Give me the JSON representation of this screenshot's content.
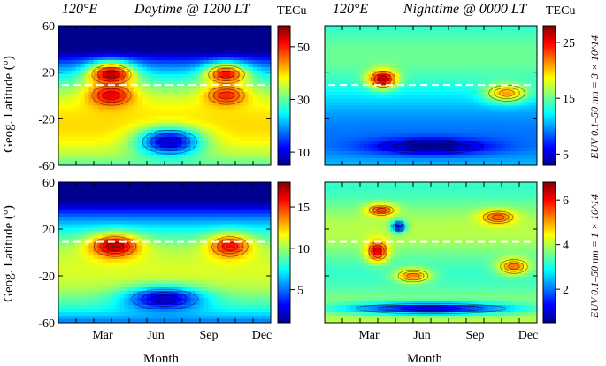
{
  "panels": [
    {
      "title_location": "120°E",
      "title_condition": "Daytime @ 1200 LT",
      "colorbar_label": "TECu",
      "colorbar_ticks": [
        "50",
        "30",
        "10"
      ]
    },
    {
      "title_location": "120°E",
      "title_condition": "Nighttime @ 0000 LT",
      "colorbar_label": "TECu",
      "colorbar_ticks": [
        "25",
        "15",
        "5"
      ]
    },
    {
      "colorbar_ticks": [
        "15",
        "10",
        "5"
      ]
    },
    {
      "colorbar_ticks": [
        "6",
        "4",
        "2"
      ]
    }
  ],
  "side_labels": [
    "EUV 0.1–50 nm = 3 × 10^14",
    "EUV 0.1–50 nm = 1 × 10^14"
  ],
  "y_axis_label": "Geog. Latitude (°)",
  "x_axis_label": "Month",
  "y_ticks": [
    "60",
    "20",
    "-20",
    "-60"
  ],
  "x_ticks": [
    "Mar",
    "Jun",
    "Sep",
    "Dec"
  ],
  "chart_data": [
    {
      "type": "heatmap",
      "title": "120°E Daytime @ 1200 LT",
      "units": "TECu",
      "xlabel": "Month",
      "ylabel": "Geog. Latitude (°)",
      "xlim": [
        0,
        12
      ],
      "ylim": [
        -60,
        60
      ],
      "zlim": [
        5,
        58
      ],
      "dip_equator_latitude": 9,
      "features": [
        {
          "type": "crest",
          "month": 3.0,
          "lat": 18,
          "value": 56,
          "spread_month": 1.3,
          "spread_lat": 10
        },
        {
          "type": "crest",
          "month": 3.0,
          "lat": 0,
          "value": 53,
          "spread_month": 1.3,
          "spread_lat": 10
        },
        {
          "type": "crest",
          "month": 9.5,
          "lat": 18,
          "value": 52,
          "spread_month": 1.2,
          "spread_lat": 9
        },
        {
          "type": "crest",
          "month": 9.5,
          "lat": 0,
          "value": 50,
          "spread_month": 1.2,
          "spread_lat": 9
        },
        {
          "type": "trough",
          "month": 6.3,
          "lat": -40,
          "value": 8,
          "spread_month": 1.8,
          "spread_lat": 12
        }
      ]
    },
    {
      "type": "heatmap",
      "title": "120°E Nighttime @ 0000 LT",
      "units": "TECu",
      "xlabel": "Month",
      "ylabel": "Geog. Latitude (°)",
      "xlim": [
        0,
        12
      ],
      "ylim": [
        -60,
        60
      ],
      "zlim": [
        3,
        28
      ],
      "dip_equator_latitude": 9,
      "features": [
        {
          "type": "crest",
          "month": 3.3,
          "lat": 14,
          "value": 27,
          "spread_month": 0.8,
          "spread_lat": 8
        },
        {
          "type": "crest",
          "month": 10.3,
          "lat": 2,
          "value": 21,
          "spread_month": 1.2,
          "spread_lat": 8
        },
        {
          "type": "trough",
          "month": 6.0,
          "lat": -44,
          "value": 3,
          "spread_month": 3.5,
          "spread_lat": 7
        }
      ]
    },
    {
      "type": "heatmap",
      "title": "",
      "units": "TECu",
      "xlabel": "Month",
      "ylabel": "Geog. Latitude (°)",
      "xlim": [
        0,
        12
      ],
      "ylim": [
        -60,
        60
      ],
      "zlim": [
        1,
        18
      ],
      "dip_equator_latitude": 9,
      "features": [
        {
          "type": "crest",
          "month": 3.2,
          "lat": 5,
          "value": 17.5,
          "spread_month": 1.4,
          "spread_lat": 10
        },
        {
          "type": "crest",
          "month": 9.7,
          "lat": 5,
          "value": 16,
          "spread_month": 1.2,
          "spread_lat": 10
        },
        {
          "type": "trough",
          "month": 6.0,
          "lat": -40,
          "value": 2,
          "spread_month": 2.2,
          "spread_lat": 10
        }
      ]
    },
    {
      "type": "heatmap",
      "title": "",
      "units": "TECu",
      "xlabel": "Month",
      "ylabel": "Geog. Latitude (°)",
      "xlim": [
        0,
        12
      ],
      "ylim": [
        -60,
        60
      ],
      "zlim": [
        0.5,
        6.8
      ],
      "dip_equator_latitude": 9,
      "features": [
        {
          "type": "crest",
          "month": 3.0,
          "lat": 1,
          "value": 6.3,
          "spread_month": 0.6,
          "spread_lat": 9
        },
        {
          "type": "crest",
          "month": 3.2,
          "lat": 36,
          "value": 5.8,
          "spread_month": 0.8,
          "spread_lat": 5
        },
        {
          "type": "crest",
          "month": 9.8,
          "lat": 30,
          "value": 5.5,
          "spread_month": 1.0,
          "spread_lat": 6
        },
        {
          "type": "crest",
          "month": 10.7,
          "lat": -12,
          "value": 5.4,
          "spread_month": 0.9,
          "spread_lat": 7
        },
        {
          "type": "crest",
          "month": 5.0,
          "lat": -20,
          "value": 5.3,
          "spread_month": 1.0,
          "spread_lat": 6
        },
        {
          "type": "minimum",
          "month": 4.2,
          "lat": 22,
          "value": 1.0,
          "spread_month": 0.4,
          "spread_lat": 5
        },
        {
          "type": "trough",
          "month": 6.0,
          "lat": -48,
          "value": 1.0,
          "spread_month": 5.0,
          "spread_lat": 5
        }
      ]
    }
  ]
}
